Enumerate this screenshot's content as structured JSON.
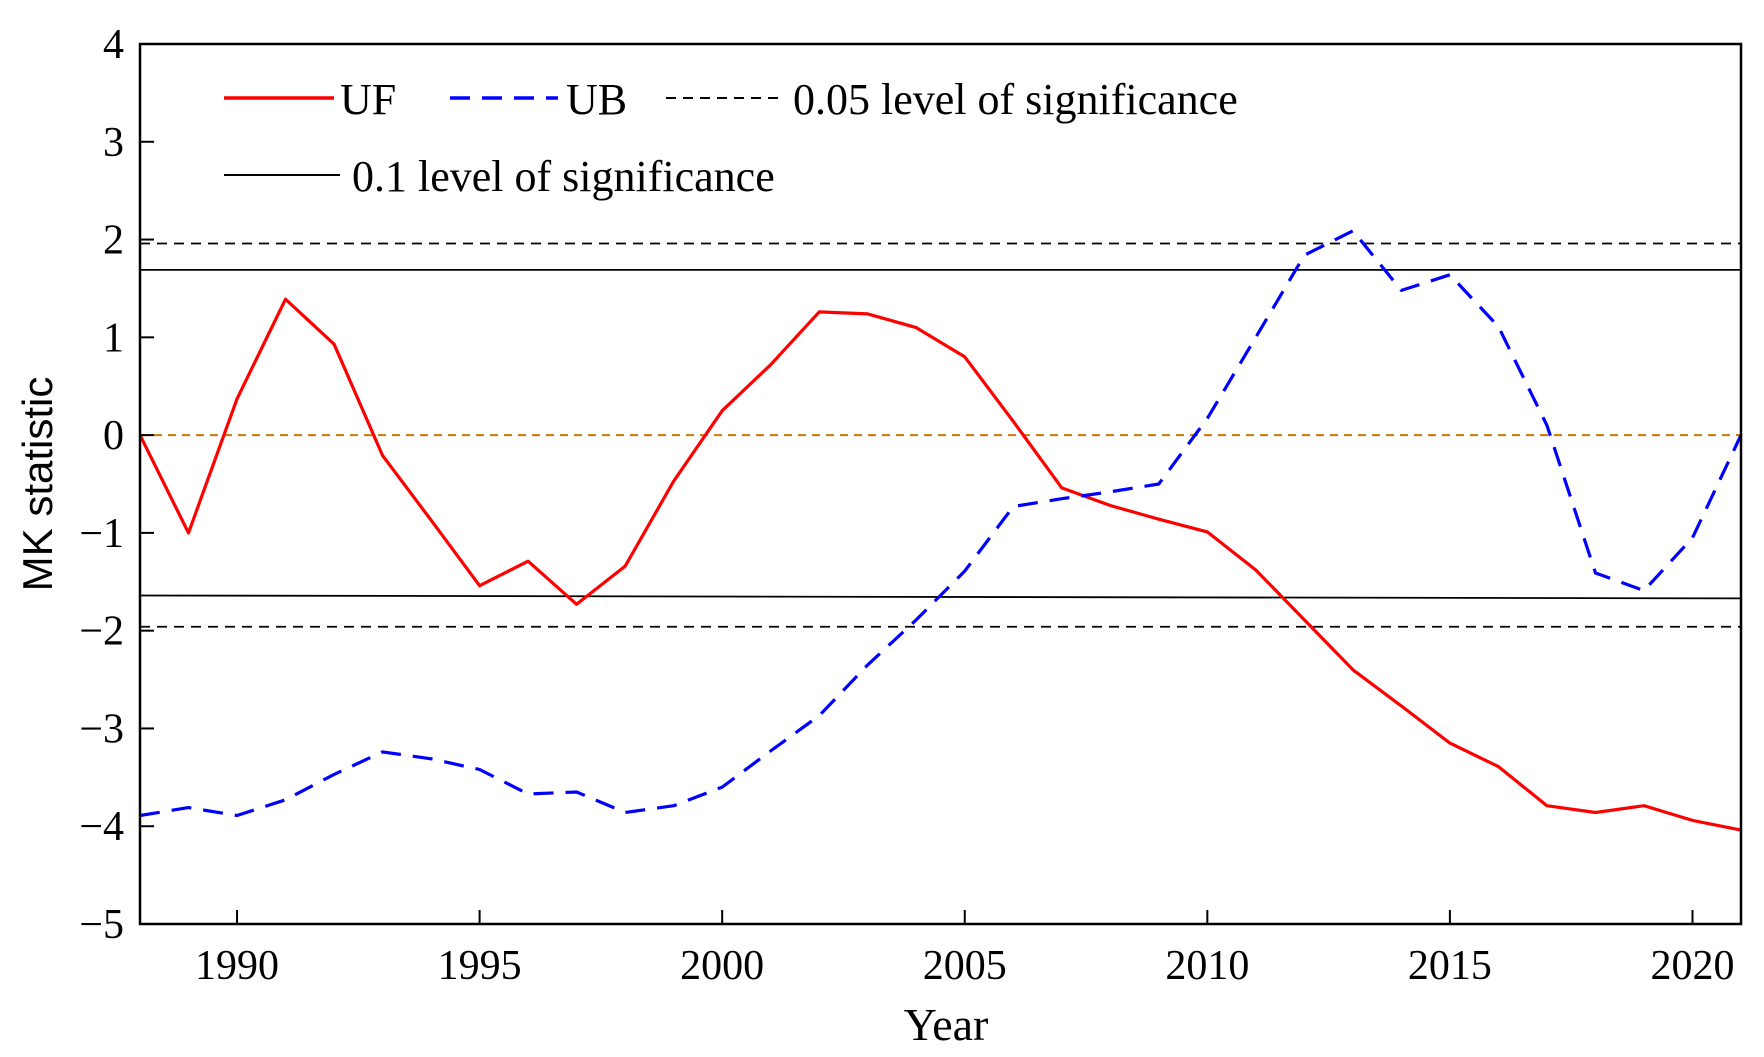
{
  "chart_data": {
    "type": "line",
    "title": "",
    "xlabel": "Year",
    "ylabel": "MK statistic",
    "xlim": [
      1988,
      2021
    ],
    "ylim": [
      -5,
      4
    ],
    "xticks": [
      1990,
      1995,
      2000,
      2005,
      2010,
      2015,
      2020
    ],
    "xtick_labels": [
      "1990",
      "1995",
      "2000",
      "2005",
      "2010",
      "2015",
      "2020"
    ],
    "yticks": [
      -5,
      -4,
      -3,
      -2,
      -1,
      0,
      1,
      2,
      3,
      4
    ],
    "ytick_labels": [
      "−5",
      "−4",
      "−3",
      "−2",
      "−1",
      "0",
      "1",
      "2",
      "3",
      "4"
    ],
    "grid": false,
    "legend_position": "top-left",
    "colors": {
      "uf": "#ff0000",
      "ub": "#0000ff",
      "zero": "#cc7a00",
      "axis": "#000000"
    },
    "x": [
      1988,
      1989,
      1990,
      1991,
      1992,
      1993,
      1994,
      1995,
      1996,
      1997,
      1998,
      1999,
      2000,
      2001,
      2002,
      2003,
      2004,
      2005,
      2006,
      2007,
      2008,
      2009,
      2010,
      2011,
      2012,
      2013,
      2014,
      2015,
      2016,
      2017,
      2018,
      2019,
      2020,
      2021
    ],
    "series": [
      {
        "name": "UF",
        "style": "solid",
        "values": [
          0.0,
          -1.0,
          0.37,
          1.39,
          0.93,
          -0.21,
          -0.87,
          -1.54,
          -1.29,
          -1.73,
          -1.34,
          -0.47,
          0.25,
          0.72,
          1.26,
          1.24,
          1.1,
          0.8,
          0.14,
          -0.54,
          -0.72,
          -0.86,
          -0.99,
          -1.38,
          -1.89,
          -2.4,
          -2.77,
          -3.15,
          -3.39,
          -3.79,
          -3.86,
          -3.79,
          -3.94,
          -4.04
        ]
      },
      {
        "name": "UB",
        "style": "dashed",
        "values": [
          -3.89,
          -3.81,
          -3.89,
          -3.73,
          -3.47,
          -3.24,
          -3.31,
          -3.42,
          -3.67,
          -3.65,
          -3.86,
          -3.79,
          -3.6,
          -3.23,
          -2.87,
          -2.35,
          -1.89,
          -1.39,
          -0.73,
          -0.65,
          -0.58,
          -0.5,
          0.17,
          1.0,
          1.84,
          2.09,
          1.48,
          1.64,
          1.11,
          0.1,
          -1.41,
          -1.59,
          -1.05,
          0.0
        ]
      }
    ],
    "reference_lines": [
      {
        "name": "0.05 level of significance",
        "style": "dashed",
        "value": 1.96
      },
      {
        "name": "0.05 level of significance",
        "style": "dashed",
        "value": -1.96
      },
      {
        "name": "0.1 level of significance",
        "style": "solid",
        "value": 1.69,
        "value_end": 1.69
      },
      {
        "name": "0.1 level of significance",
        "style": "solid",
        "value": -1.64,
        "value_end": -1.67
      },
      {
        "name": "zero",
        "style": "dashed",
        "value": 0
      }
    ],
    "legend": [
      {
        "label": "UF",
        "style": "solid",
        "color": "#ff0000"
      },
      {
        "label": "UB",
        "style": "dashed",
        "color": "#0000ff"
      },
      {
        "label": "0.05 level of significance",
        "style": "dashed",
        "color": "#000000"
      },
      {
        "label": "0.1 level of significance",
        "style": "solid",
        "color": "#000000"
      }
    ]
  }
}
